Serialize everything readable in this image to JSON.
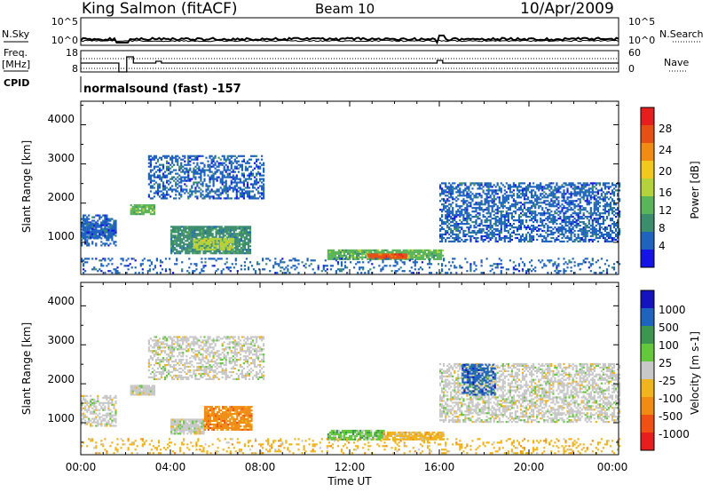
{
  "header": {
    "station": "King Salmon (fitACF)",
    "beam": "Beam 10",
    "date": "10/Apr/2009"
  },
  "sky_panel": {
    "left_label": "N.Sky",
    "right_label": "N.Search",
    "left_ticks": [
      "10^5",
      "10^0"
    ],
    "right_ticks": [
      "10^5",
      "10^0"
    ]
  },
  "freq_panel": {
    "left_label_1": "Freq.",
    "left_label_2": "[MHz]",
    "left_ticks": [
      "18",
      "8"
    ],
    "right_label": "Nave",
    "right_ticks": [
      "60",
      "0"
    ]
  },
  "cpid": {
    "label": "CPID",
    "program": "normalsound (fast) -157"
  },
  "chart_data": [
    {
      "type": "heatmap",
      "panel": "power",
      "ylabel": "Slant Range [km]",
      "xlabel": "Time UT",
      "x_ticks": [
        "00:00",
        "04:00",
        "08:00",
        "12:00",
        "16:00",
        "20:00",
        "00:00"
      ],
      "x_range_hours": [
        0,
        24
      ],
      "y_ticks": [
        "1000",
        "2000",
        "3000",
        "4000"
      ],
      "ylim": [
        180,
        4600
      ],
      "colorbar": {
        "label": "Power [dB]",
        "ticks": [
          "4",
          "8",
          "12",
          "16",
          "20",
          "24",
          "28"
        ],
        "range": [
          0,
          30
        ],
        "colors": [
          "#1414e6",
          "#1e64be",
          "#3c8c6e",
          "#5ab45a",
          "#b4d23c",
          "#f0c81e",
          "#f08c14",
          "#e65014",
          "#e61e1e"
        ]
      },
      "regions": [
        {
          "t": [
            0.0,
            1.6
          ],
          "r": [
            900,
            1700
          ],
          "level": 1,
          "density": 0.55
        },
        {
          "t": [
            0.0,
            1.6
          ],
          "r": [
            1100,
            1500
          ],
          "level": 1,
          "density": 0.8
        },
        {
          "t": [
            2.2,
            3.3
          ],
          "r": [
            1700,
            1950
          ],
          "level": 3,
          "density": 0.9
        },
        {
          "t": [
            3.0,
            8.2
          ],
          "r": [
            2100,
            3200
          ],
          "level": 1,
          "density": 0.5
        },
        {
          "t": [
            4.0,
            7.6
          ],
          "r": [
            700,
            1400
          ],
          "level": 2,
          "density": 0.85
        },
        {
          "t": [
            5.0,
            6.8
          ],
          "r": [
            800,
            1100
          ],
          "level": 4,
          "density": 0.8
        },
        {
          "t": [
            11.0,
            16.2
          ],
          "r": [
            550,
            800
          ],
          "level": 3,
          "density": 0.85
        },
        {
          "t": [
            12.8,
            14.5
          ],
          "r": [
            580,
            700
          ],
          "level": 7,
          "density": 0.9
        },
        {
          "t": [
            16.0,
            24.0
          ],
          "r": [
            1000,
            2500
          ],
          "level": 1,
          "density": 0.55
        },
        {
          "t": [
            0.0,
            24.0
          ],
          "r": [
            200,
            600
          ],
          "level": 1,
          "density": 0.2
        }
      ]
    },
    {
      "type": "heatmap",
      "panel": "velocity",
      "ylabel": "Slant Range [km]",
      "xlabel": "Time UT",
      "x_ticks": [
        "00:00",
        "04:00",
        "08:00",
        "12:00",
        "16:00",
        "20:00",
        "00:00"
      ],
      "x_range_hours": [
        0,
        24
      ],
      "y_ticks": [
        "1000",
        "2000",
        "3000",
        "4000"
      ],
      "ylim": [
        180,
        4600
      ],
      "colorbar": {
        "label": "Velocity [m s-1]",
        "ticks": [
          "1000",
          "500",
          "100",
          "25",
          "-25",
          "-100",
          "-500",
          "-1000"
        ],
        "colors": [
          "#1414be",
          "#1e64be",
          "#3c9650",
          "#64c83c",
          "#c8c8c8",
          "#f0b41e",
          "#f08c14",
          "#f05014",
          "#e61e1e"
        ]
      },
      "regions": [
        {
          "t": [
            0.0,
            1.6
          ],
          "r": [
            900,
            1700
          ],
          "level": 4,
          "density": 0.55
        },
        {
          "t": [
            2.2,
            3.3
          ],
          "r": [
            1700,
            1950
          ],
          "level": 4,
          "density": 0.9
        },
        {
          "t": [
            3.0,
            8.2
          ],
          "r": [
            2100,
            3200
          ],
          "level": 4,
          "density": 0.5
        },
        {
          "t": [
            4.0,
            5.5
          ],
          "r": [
            700,
            1100
          ],
          "level": 4,
          "density": 0.85
        },
        {
          "t": [
            5.5,
            7.6
          ],
          "r": [
            800,
            1400
          ],
          "level": 6,
          "density": 0.85
        },
        {
          "t": [
            11.0,
            13.5
          ],
          "r": [
            550,
            800
          ],
          "level": 3,
          "density": 0.85
        },
        {
          "t": [
            13.5,
            16.2
          ],
          "r": [
            550,
            750
          ],
          "level": 5,
          "density": 0.85
        },
        {
          "t": [
            16.0,
            24.0
          ],
          "r": [
            1000,
            2500
          ],
          "level": 4,
          "density": 0.55
        },
        {
          "t": [
            17.0,
            18.5
          ],
          "r": [
            1700,
            2500
          ],
          "level": 1,
          "density": 0.6
        },
        {
          "t": [
            0.0,
            24.0
          ],
          "r": [
            200,
            600
          ],
          "level": 5,
          "density": 0.2
        }
      ]
    }
  ]
}
